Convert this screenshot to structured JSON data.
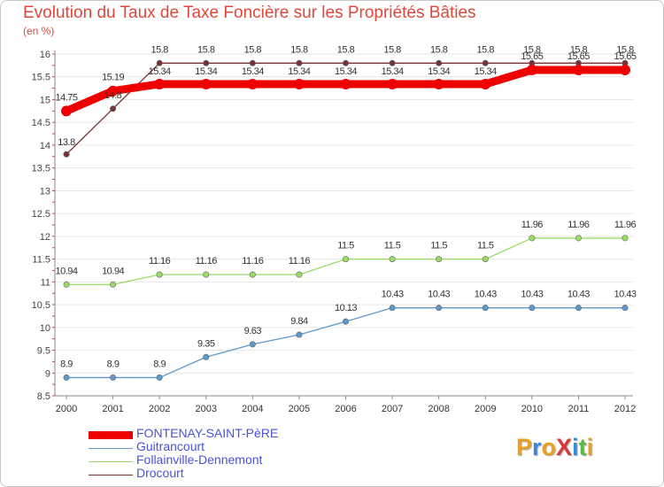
{
  "chart_data": {
    "type": "line",
    "title": "Evolution du Taux de Taxe Foncière sur les Propriétés Bâties",
    "unit_label": "(en %)",
    "x": [
      "2000",
      "2001",
      "2002",
      "2003",
      "2004",
      "2005",
      "2006",
      "2007",
      "2008",
      "2009",
      "2010",
      "2011",
      "2012"
    ],
    "ylim": [
      8.5,
      16
    ],
    "yticks": [
      "8.5",
      "9",
      "9.5",
      "10",
      "10.5",
      "11",
      "11.5",
      "12",
      "12.5",
      "13",
      "13.5",
      "14",
      "14.5",
      "15",
      "15.5",
      "16"
    ],
    "grid": "horizontal",
    "series": [
      {
        "name": "FONTENAY-SAINT-PèRE",
        "color": "#ee0000",
        "values": [
          14.75,
          15.19,
          15.34,
          15.34,
          15.34,
          15.34,
          15.34,
          15.34,
          15.34,
          15.34,
          15.65,
          15.65,
          15.65
        ],
        "labels": [
          "14.75",
          "15.19",
          "15.34",
          "15.34",
          "15.34",
          "15.34",
          "15.34",
          "15.34",
          "15.34",
          "15.34",
          "15.65",
          "15.65",
          "15.65"
        ]
      },
      {
        "name": "Guitrancourt",
        "color": "#5f99cc",
        "values": [
          8.9,
          8.9,
          8.9,
          9.35,
          9.63,
          9.84,
          10.13,
          10.43,
          10.43,
          10.43,
          10.43,
          10.43,
          10.43
        ],
        "labels": [
          "8.9",
          "8.9",
          "8.9",
          "9.35",
          "9.63",
          "9.84",
          "10.13",
          "10.43",
          "10.43",
          "10.43",
          "10.43",
          "10.43",
          "10.43"
        ]
      },
      {
        "name": "Follainville-Dennemont",
        "color": "#99dd66",
        "values": [
          10.94,
          10.94,
          11.16,
          11.16,
          11.16,
          11.16,
          11.5,
          11.5,
          11.5,
          11.5,
          11.96,
          11.96,
          11.96
        ],
        "labels": [
          "10.94",
          "10.94",
          "11.16",
          "11.16",
          "11.16",
          "11.16",
          "11.5",
          "11.5",
          "11.5",
          "11.5",
          "11.96",
          "11.96",
          "11.96"
        ]
      },
      {
        "name": "Drocourt",
        "color": "#773333",
        "values": [
          13.8,
          14.8,
          15.8,
          15.8,
          15.8,
          15.8,
          15.8,
          15.8,
          15.8,
          15.8,
          15.8,
          15.8,
          15.8
        ],
        "labels": [
          "13.8",
          "14.8",
          "15.8",
          "15.8",
          "15.8",
          "15.8",
          "15.8",
          "15.8",
          "15.8",
          "15.8",
          "15.8",
          "15.8",
          "15.8"
        ]
      }
    ]
  },
  "logo": {
    "text": "ProXiti",
    "letters": [
      "P",
      "r",
      "o",
      "X",
      "i",
      "t",
      "i"
    ],
    "letter_colors": [
      "#e8a020",
      "#3a88d8",
      "#e8a020",
      "#d83a3a",
      "#3a88d8",
      "#5ab84a",
      "#e8a020"
    ]
  }
}
